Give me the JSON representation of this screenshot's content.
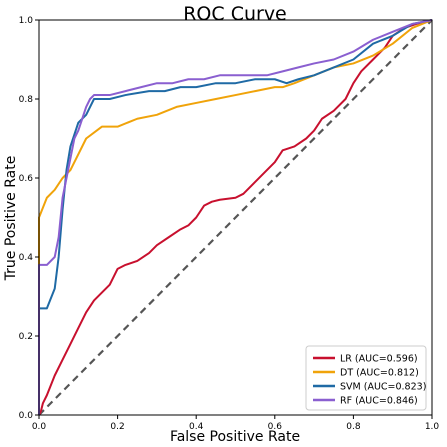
{
  "chart_data": {
    "type": "line",
    "title": "ROC Curve",
    "xlabel": "False Positive Rate",
    "ylabel": "True Positive Rate",
    "xlim": [
      0.0,
      1.0
    ],
    "ylim": [
      0.0,
      1.0
    ],
    "x_ticks": [
      "0.0",
      "0.2",
      "0.4",
      "0.6",
      "0.8",
      "1.0"
    ],
    "y_ticks": [
      "0.0",
      "0.2",
      "0.4",
      "0.6",
      "0.8",
      "1.0"
    ],
    "grid": false,
    "legend_position": "bottom-right",
    "reference_line": {
      "style": "dashed",
      "color": "#555555",
      "x": [
        0,
        1
      ],
      "y": [
        0,
        1
      ]
    },
    "series": [
      {
        "name": "LR (AUC=0.596)",
        "color": "#c8102e",
        "x": [
          0,
          0.005,
          0.01,
          0.02,
          0.04,
          0.06,
          0.08,
          0.1,
          0.12,
          0.14,
          0.16,
          0.18,
          0.2,
          0.22,
          0.25,
          0.28,
          0.3,
          0.33,
          0.36,
          0.38,
          0.4,
          0.42,
          0.44,
          0.46,
          0.5,
          0.52,
          0.55,
          0.58,
          0.6,
          0.62,
          0.65,
          0.68,
          0.7,
          0.72,
          0.75,
          0.78,
          0.8,
          0.82,
          0.85,
          0.88,
          0.9,
          0.93,
          0.96,
          1.0
        ],
        "y": [
          0,
          0.01,
          0.03,
          0.05,
          0.1,
          0.14,
          0.18,
          0.22,
          0.26,
          0.29,
          0.31,
          0.33,
          0.37,
          0.38,
          0.39,
          0.41,
          0.43,
          0.45,
          0.47,
          0.48,
          0.5,
          0.53,
          0.54,
          0.545,
          0.55,
          0.56,
          0.59,
          0.62,
          0.64,
          0.67,
          0.68,
          0.7,
          0.72,
          0.75,
          0.77,
          0.8,
          0.84,
          0.87,
          0.9,
          0.93,
          0.96,
          0.98,
          0.99,
          1.0
        ]
      },
      {
        "name": "DT (AUC=0.812)",
        "color": "#f0a30a",
        "x": [
          0,
          0,
          0.02,
          0.04,
          0.06,
          0.08,
          0.1,
          0.12,
          0.16,
          0.2,
          0.25,
          0.3,
          0.35,
          0.4,
          0.45,
          0.5,
          0.55,
          0.6,
          0.62,
          0.65,
          0.7,
          0.75,
          0.8,
          0.85,
          0.9,
          0.95,
          1.0
        ],
        "y": [
          0,
          0.5,
          0.55,
          0.57,
          0.6,
          0.62,
          0.66,
          0.7,
          0.73,
          0.73,
          0.75,
          0.76,
          0.78,
          0.79,
          0.8,
          0.81,
          0.82,
          0.83,
          0.83,
          0.84,
          0.86,
          0.88,
          0.89,
          0.91,
          0.94,
          0.98,
          1.0
        ]
      },
      {
        "name": "SVM (AUC=0.823)",
        "color": "#1f6aa5",
        "x": [
          0,
          0,
          0.02,
          0.04,
          0.05,
          0.06,
          0.07,
          0.08,
          0.09,
          0.1,
          0.12,
          0.14,
          0.18,
          0.22,
          0.28,
          0.32,
          0.36,
          0.4,
          0.45,
          0.5,
          0.55,
          0.6,
          0.63,
          0.66,
          0.7,
          0.75,
          0.8,
          0.85,
          0.9,
          0.95,
          1.0
        ],
        "y": [
          0,
          0.27,
          0.27,
          0.32,
          0.4,
          0.52,
          0.62,
          0.68,
          0.71,
          0.74,
          0.76,
          0.8,
          0.8,
          0.81,
          0.82,
          0.82,
          0.83,
          0.83,
          0.84,
          0.84,
          0.85,
          0.85,
          0.84,
          0.85,
          0.86,
          0.88,
          0.9,
          0.94,
          0.96,
          0.99,
          1.0
        ]
      },
      {
        "name": "RF (AUC=0.846)",
        "color": "#8a5fd0",
        "x": [
          0,
          0,
          0.02,
          0.04,
          0.05,
          0.06,
          0.08,
          0.09,
          0.1,
          0.11,
          0.12,
          0.13,
          0.14,
          0.18,
          0.22,
          0.26,
          0.3,
          0.34,
          0.38,
          0.42,
          0.46,
          0.5,
          0.54,
          0.58,
          0.62,
          0.66,
          0.7,
          0.75,
          0.8,
          0.85,
          0.9,
          0.95,
          1.0
        ],
        "y": [
          0,
          0.38,
          0.38,
          0.4,
          0.45,
          0.55,
          0.65,
          0.7,
          0.72,
          0.75,
          0.78,
          0.8,
          0.81,
          0.81,
          0.82,
          0.83,
          0.84,
          0.84,
          0.85,
          0.85,
          0.86,
          0.86,
          0.86,
          0.86,
          0.87,
          0.88,
          0.89,
          0.9,
          0.92,
          0.95,
          0.97,
          0.99,
          1.0
        ]
      }
    ]
  }
}
